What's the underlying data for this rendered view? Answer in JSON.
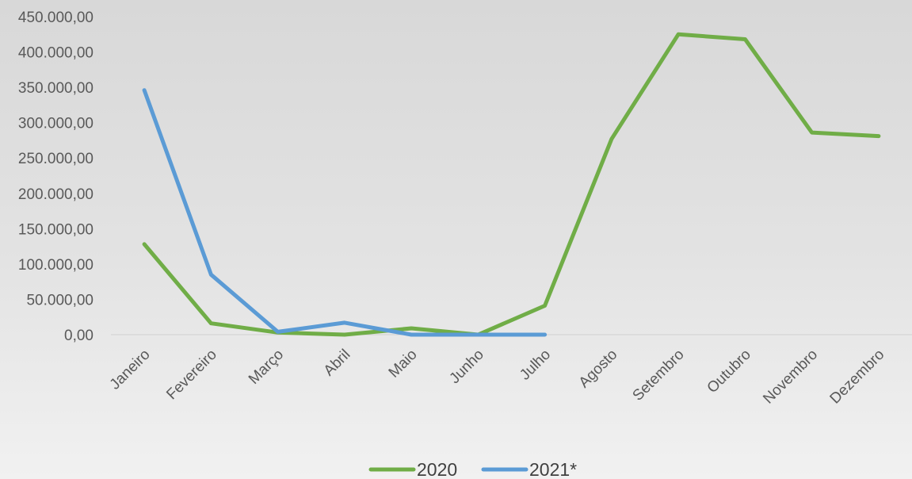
{
  "chart_data": {
    "type": "line",
    "title": "",
    "xlabel": "",
    "ylabel": "",
    "categories": [
      "Janeiro",
      "Fevereiro",
      "Março",
      "Abril",
      "Maio",
      "Junho",
      "Julho",
      "Agosto",
      "Setembro",
      "Outubro",
      "Novembro",
      "Dezembro"
    ],
    "ylim": [
      0,
      450000
    ],
    "yticks": [
      0,
      50000,
      100000,
      150000,
      200000,
      250000,
      300000,
      350000,
      400000,
      450000
    ],
    "ytick_labels": [
      "0,00",
      "50.000,00",
      "100.000,00",
      "150.000,00",
      "200.000,00",
      "250.000,00",
      "300.000,00",
      "350.000,00",
      "400.000,00",
      "450.000,00"
    ],
    "grid": false,
    "legend_position": "bottom",
    "series": [
      {
        "name": "2020",
        "color": "#70ad47",
        "values": [
          128000,
          16000,
          3000,
          0,
          9000,
          0,
          41000,
          277000,
          425000,
          418000,
          286000,
          281000
        ]
      },
      {
        "name": "2021*",
        "color": "#5b9bd5",
        "values": [
          346000,
          85000,
          4000,
          17000,
          0,
          0,
          0,
          null,
          null,
          null,
          null,
          null
        ]
      }
    ]
  }
}
